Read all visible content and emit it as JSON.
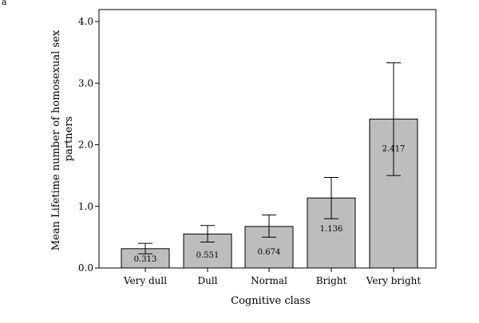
{
  "corner_label": "a",
  "chart_data": {
    "type": "bar",
    "title": "",
    "xlabel": "Cognitive class",
    "ylabel_lines": [
      "Mean Lifetime number of homosexual sex",
      "partners"
    ],
    "categories": [
      "Very dull",
      "Dull",
      "Normal",
      "Bright",
      "Very bright"
    ],
    "values": [
      0.313,
      0.551,
      0.674,
      1.136,
      2.417
    ],
    "value_labels": [
      "0.313",
      "0.551",
      "0.674",
      "1.136",
      "2.417"
    ],
    "error_low": [
      0.23,
      0.42,
      0.5,
      0.8,
      1.5
    ],
    "error_high": [
      0.4,
      0.69,
      0.86,
      1.47,
      3.33
    ],
    "ylim": [
      0,
      4
    ],
    "yticks": [
      0,
      1,
      2,
      3,
      4
    ],
    "ytick_labels": [
      "0.0",
      "1.0",
      "2.0",
      "3.0",
      "4.0"
    ],
    "grid": false,
    "legend": "none",
    "bar_color": "#bdbdbd"
  }
}
